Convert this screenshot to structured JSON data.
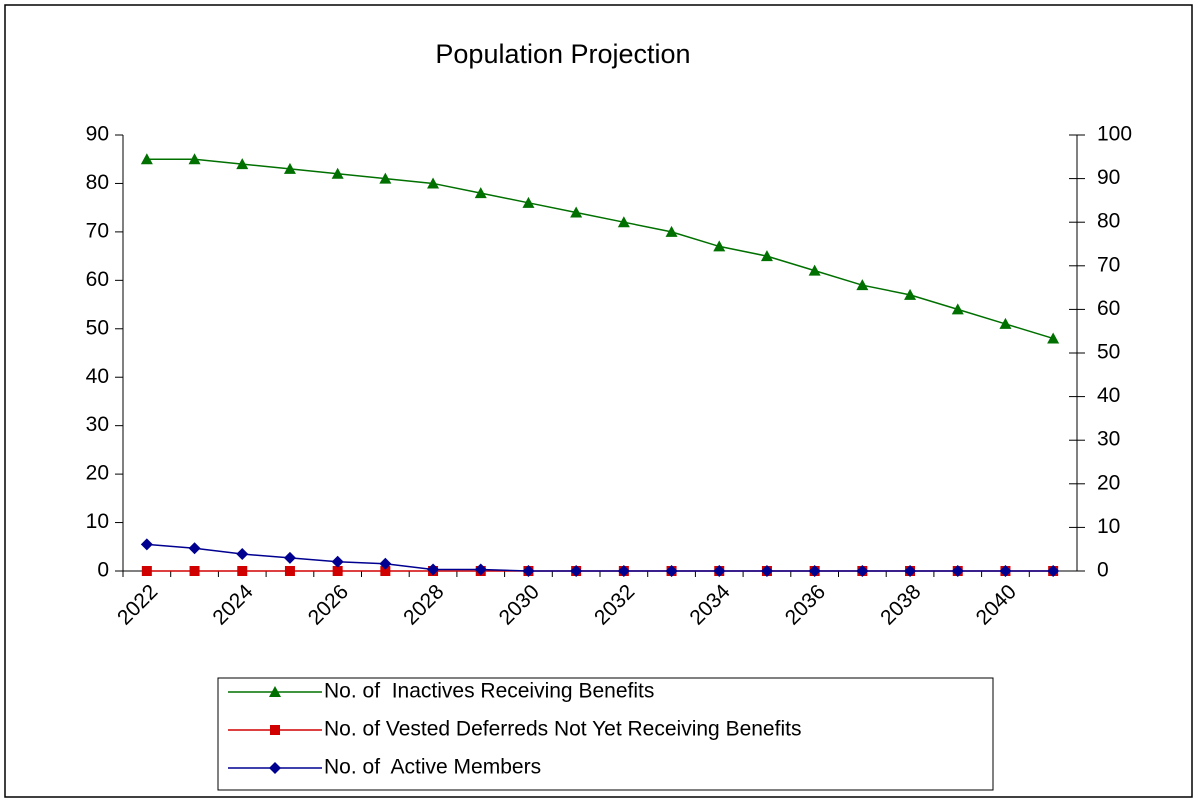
{
  "chart_data": {
    "type": "line",
    "title": "Population Projection",
    "categories": [
      "2022",
      null,
      "2024",
      null,
      "2026",
      null,
      "2028",
      null,
      "2030",
      null,
      "2032",
      null,
      "2034",
      null,
      "2036",
      null,
      "2038",
      null,
      "2040",
      null
    ],
    "series": [
      {
        "name": "No. of  Inactives Receiving Benefits",
        "color": "#007000",
        "marker": "triangle",
        "values": [
          85,
          85,
          84,
          83,
          82,
          81,
          80,
          78,
          76,
          74,
          72,
          70,
          67,
          65,
          62,
          59,
          57,
          54,
          51,
          48
        ]
      },
      {
        "name": "No. of Vested Deferreds Not Yet Receiving Benefits",
        "color": "#d00000",
        "marker": "square",
        "values": [
          0,
          0,
          0,
          0,
          0,
          0,
          0,
          0,
          0,
          0,
          0,
          0,
          0,
          0,
          0,
          0,
          0,
          0,
          0,
          0
        ]
      },
      {
        "name": "No. of  Active Members",
        "color": "#000090",
        "marker": "diamond",
        "values": [
          5.5,
          4.7,
          3.5,
          2.7,
          1.9,
          1.5,
          0.3,
          0.3,
          0,
          0,
          0,
          0,
          0,
          0,
          0,
          0,
          0,
          0,
          0,
          0
        ]
      }
    ],
    "ylim": [
      0,
      90
    ],
    "yticks": [
      0,
      10,
      20,
      30,
      40,
      50,
      60,
      70,
      80,
      90
    ],
    "y2lim": [
      0,
      100
    ],
    "y2ticks": [
      0,
      10,
      20,
      30,
      40,
      50,
      60,
      70,
      80,
      90,
      100
    ]
  }
}
